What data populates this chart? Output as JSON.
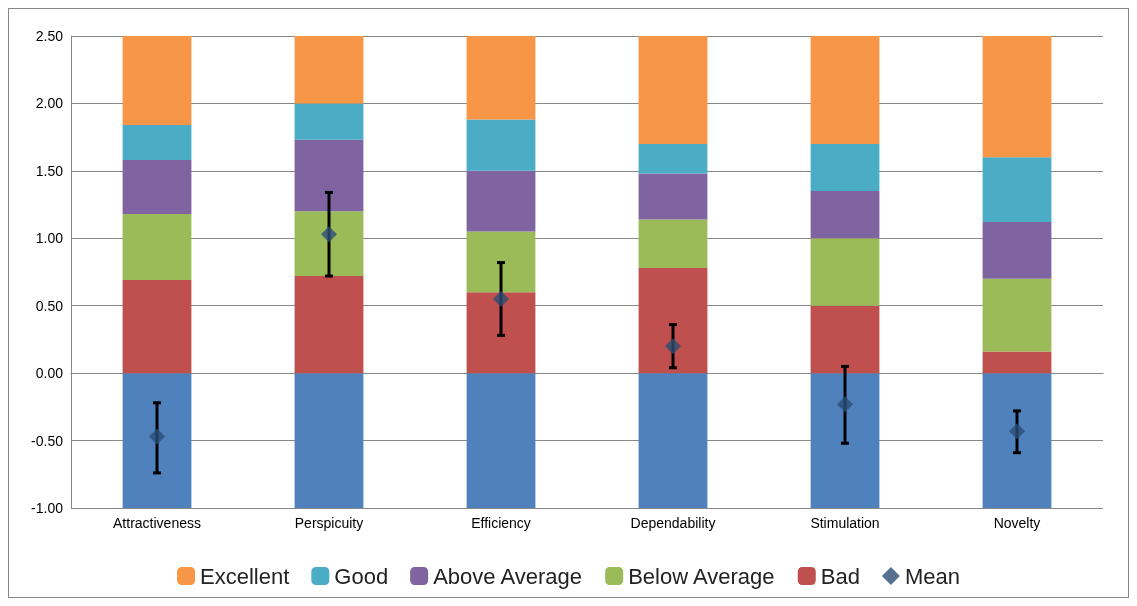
{
  "chart_data": {
    "type": "bar",
    "stacked": true,
    "categories": [
      "Attractiveness",
      "Perspicuity",
      "Efficiency",
      "Dependability",
      "Stimulation",
      "Novelty"
    ],
    "series": [
      {
        "color": "#4f81bd",
        "values": [
          -1.0,
          -1.0,
          -1.0,
          -1.0,
          -1.0,
          -1.0
        ]
      },
      {
        "name": "Bad",
        "color": "#c0504d",
        "values": [
          0.69,
          0.72,
          0.6,
          0.78,
          0.5,
          0.16
        ]
      },
      {
        "name": "Below Average",
        "color": "#9bbb59",
        "values": [
          0.49,
          0.48,
          0.45,
          0.36,
          0.5,
          0.54
        ]
      },
      {
        "name": "Above Average",
        "color": "#8064a2",
        "values": [
          0.4,
          0.53,
          0.45,
          0.34,
          0.35,
          0.42
        ]
      },
      {
        "name": "Good",
        "color": "#4bacc6",
        "values": [
          0.26,
          0.27,
          0.38,
          0.22,
          0.35,
          0.48
        ]
      },
      {
        "name": "Excellent",
        "color": "#f79646",
        "values": [
          0.66,
          0.5,
          0.62,
          0.8,
          0.8,
          0.9
        ]
      },
      {
        "name": "Mean",
        "type": "scatter",
        "marker": "diamond",
        "color": "#2c4d75",
        "x": [
          "Attractiveness",
          "Perspicuity",
          "Efficiency",
          "Dependability",
          "Stimulation",
          "Novelty"
        ],
        "values": [
          -0.47,
          1.03,
          0.55,
          0.2,
          -0.23,
          -0.43
        ],
        "errors": [
          [
            -0.74,
            -0.22
          ],
          [
            0.72,
            1.34
          ],
          [
            0.28,
            0.82
          ],
          [
            0.04,
            0.36
          ],
          [
            -0.52,
            0.05
          ],
          [
            -0.59,
            -0.28
          ]
        ]
      }
    ],
    "ylim": [
      -1,
      2.5
    ],
    "yticks": [
      {
        "value": -1,
        "label": "-1.00"
      },
      {
        "value": -0.5,
        "label": "-0.50"
      },
      {
        "value": 0,
        "label": "0.00"
      },
      {
        "value": 0.5,
        "label": "0.50"
      },
      {
        "value": 1,
        "label": "1.00"
      },
      {
        "value": 1.5,
        "label": "1.50"
      },
      {
        "value": 2,
        "label": "2.00"
      },
      {
        "value": 2.5,
        "label": "2.50"
      }
    ],
    "grid": "y",
    "legend": "bottom"
  }
}
